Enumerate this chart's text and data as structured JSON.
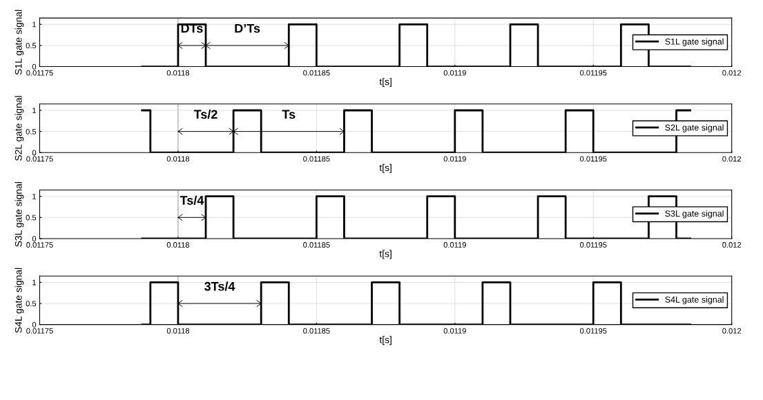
{
  "chart_data": [
    {
      "type": "step",
      "xlabel": "t[s]",
      "ylabel": "S1L gate signal",
      "xlim": [
        0.01175,
        0.012
      ],
      "xticks": [
        0.01175,
        0.0118,
        0.01185,
        0.0119,
        0.01195,
        0.012
      ],
      "ylim": [
        0,
        1.15
      ],
      "yticks": [
        0,
        0.5,
        1
      ],
      "grid": true,
      "legend": "right",
      "series": [
        {
          "name": "S1L gate signal",
          "color": "#000000",
          "x": [
            0.011787,
            0.0118,
            0.01181,
            0.01184,
            0.01185,
            0.01188,
            0.01189,
            0.01192,
            0.01193,
            0.01196,
            0.01197,
            0.011985
          ],
          "values": [
            0,
            1,
            0,
            1,
            0,
            1,
            0,
            1,
            0,
            1,
            0,
            0
          ]
        },
        {
          "type": "line",
          "marker": "cross",
          "color": "#000000",
          "x": [
            0.0118,
            0.01181
          ],
          "values": [
            0.5,
            0.5
          ]
        },
        {
          "type": "line",
          "marker": "cross",
          "color": "#000000",
          "x": [
            0.01181,
            0.01184
          ],
          "values": [
            0.5,
            0.5
          ]
        }
      ],
      "annotations": [
        "DTs",
        "D’Ts"
      ],
      "ref_lines": [
        {
          "axis": "x",
          "value": 0.0118,
          "line_style": "dotted",
          "color": "#000000"
        }
      ]
    },
    {
      "type": "step",
      "xlabel": "t[s]",
      "ylabel": "S2L gate signal",
      "xlim": [
        0.01175,
        0.012
      ],
      "xticks": [
        0.01175,
        0.0118,
        0.01185,
        0.0119,
        0.01195,
        0.012
      ],
      "ylim": [
        0,
        1.15
      ],
      "yticks": [
        0,
        0.5,
        1
      ],
      "grid": true,
      "legend": "right",
      "series": [
        {
          "name": "S2L gate signal",
          "color": "#000000",
          "x": [
            0.011787,
            0.01179,
            0.01182,
            0.01183,
            0.01186,
            0.01187,
            0.0119,
            0.01191,
            0.01194,
            0.01195,
            0.01198,
            0.011985
          ],
          "values": [
            1,
            0,
            1,
            0,
            1,
            0,
            1,
            0,
            1,
            0,
            1,
            1
          ]
        },
        {
          "type": "line",
          "marker": "cross",
          "color": "#000000",
          "x": [
            0.0118,
            0.01182
          ],
          "values": [
            0.5,
            0.5
          ]
        },
        {
          "type": "line",
          "marker": "cross",
          "color": "#000000",
          "x": [
            0.01182,
            0.01186
          ],
          "values": [
            0.5,
            0.5
          ]
        }
      ],
      "annotations": [
        "Ts/2",
        "Ts"
      ],
      "ref_lines": [
        {
          "axis": "x",
          "value": 0.0118,
          "line_style": "dotted",
          "color": "#000000"
        }
      ]
    },
    {
      "type": "step",
      "xlabel": "t[s]",
      "ylabel": "S3L gate signal",
      "xlim": [
        0.01175,
        0.012
      ],
      "xticks": [
        0.01175,
        0.0118,
        0.01185,
        0.0119,
        0.01195,
        0.012
      ],
      "ylim": [
        0,
        1.15
      ],
      "yticks": [
        0,
        0.5,
        1
      ],
      "grid": true,
      "legend": "right",
      "series": [
        {
          "name": "S3L gate signal",
          "color": "#000000",
          "x": [
            0.011787,
            0.01181,
            0.01182,
            0.01185,
            0.01186,
            0.01189,
            0.0119,
            0.01193,
            0.01194,
            0.01197,
            0.01198,
            0.011985
          ],
          "values": [
            0,
            1,
            0,
            1,
            0,
            1,
            0,
            1,
            0,
            1,
            0,
            0
          ]
        },
        {
          "type": "line",
          "marker": "cross",
          "color": "#000000",
          "x": [
            0.0118,
            0.01181
          ],
          "values": [
            0.5,
            0.5
          ]
        }
      ],
      "annotations": [
        "Ts/4"
      ],
      "ref_lines": [
        {
          "axis": "x",
          "value": 0.0118,
          "line_style": "dotted",
          "color": "#000000"
        }
      ]
    },
    {
      "type": "step",
      "xlabel": "t[s]",
      "ylabel": "S4L gate signal",
      "xlim": [
        0.01175,
        0.012
      ],
      "xticks": [
        0.01175,
        0.0118,
        0.01185,
        0.0119,
        0.01195,
        0.012
      ],
      "ylim": [
        0,
        1.15
      ],
      "yticks": [
        0,
        0.5,
        1
      ],
      "grid": true,
      "legend": "right",
      "series": [
        {
          "name": "S4L gate signal",
          "color": "#000000",
          "x": [
            0.011787,
            0.01179,
            0.0118,
            0.01183,
            0.01184,
            0.01187,
            0.01188,
            0.01191,
            0.01192,
            0.01195,
            0.01196,
            0.011985
          ],
          "values": [
            0,
            1,
            0,
            1,
            0,
            1,
            0,
            1,
            0,
            1,
            0,
            0
          ]
        },
        {
          "type": "line",
          "marker": "cross",
          "color": "#000000",
          "x": [
            0.0118,
            0.01183
          ],
          "values": [
            0.5,
            0.5
          ]
        }
      ],
      "annotations": [
        "3Ts/4"
      ],
      "ref_lines": [
        {
          "axis": "x",
          "value": 0.0118,
          "line_style": "dotted",
          "color": "#000000"
        }
      ]
    }
  ]
}
